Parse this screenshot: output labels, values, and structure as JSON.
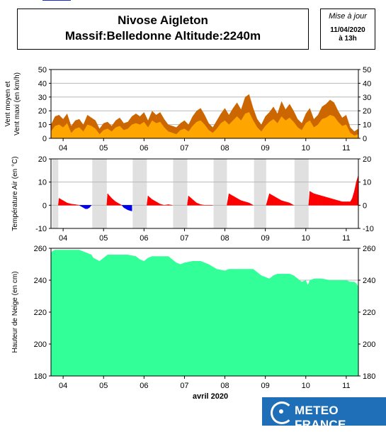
{
  "header": {
    "line1": "Nivose Aigleton",
    "line2": "Massif:Belledonne Altitude:2240m"
  },
  "update": {
    "label": "Mise à jour",
    "date": "11/04/2020",
    "time": "à 13h"
  },
  "brand": {
    "name": "METEO FRANCE"
  },
  "colors": {
    "wind_max": "#cc6600",
    "wind_mean": "#ffa500",
    "temp_pos": "#ff0000",
    "temp_neg": "#0000ee",
    "snow": "#33ff99",
    "night_band": "#e0e0e0"
  },
  "chart_data": [
    {
      "type": "area",
      "ylabel": "Vent moyen et Vent maxi (en km/h)",
      "ylim": [
        0,
        50
      ],
      "yticks": [
        0,
        10,
        20,
        30,
        40,
        50
      ],
      "xlim": [
        3.7,
        11.3
      ],
      "xticks": [
        {
          "x": 4.0,
          "label": "04"
        },
        {
          "x": 5.0,
          "label": "05"
        },
        {
          "x": 6.0,
          "label": "06"
        },
        {
          "x": 7.0,
          "label": "07"
        },
        {
          "x": 8.0,
          "label": "08"
        },
        {
          "x": 9.0,
          "label": "09"
        },
        {
          "x": 10.0,
          "label": "10"
        },
        {
          "x": 11.0,
          "label": "11"
        }
      ],
      "grid": true,
      "series": [
        {
          "role": "max",
          "x": [
            3.7,
            3.8,
            3.9,
            4.0,
            4.1,
            4.2,
            4.3,
            4.4,
            4.5,
            4.6,
            4.7,
            4.8,
            4.9,
            5.0,
            5.1,
            5.2,
            5.3,
            5.4,
            5.5,
            5.6,
            5.7,
            5.8,
            5.9,
            6.0,
            6.1,
            6.2,
            6.3,
            6.4,
            6.5,
            6.6,
            6.7,
            6.8,
            6.9,
            7.0,
            7.1,
            7.2,
            7.3,
            7.4,
            7.5,
            7.6,
            7.7,
            7.8,
            7.9,
            8.0,
            8.1,
            8.2,
            8.3,
            8.4,
            8.5,
            8.6,
            8.7,
            8.8,
            8.9,
            9.0,
            9.1,
            9.2,
            9.3,
            9.4,
            9.5,
            9.6,
            9.7,
            9.8,
            9.9,
            10.0,
            10.1,
            10.2,
            10.3,
            10.4,
            10.5,
            10.6,
            10.7,
            10.8,
            10.9,
            11.0,
            11.1,
            11.2,
            11.3
          ],
          "values": [
            10,
            16,
            17,
            14,
            18,
            9,
            13,
            14,
            10,
            17,
            15,
            13,
            7,
            11,
            12,
            9,
            13,
            15,
            11,
            12,
            16,
            18,
            16,
            19,
            13,
            20,
            17,
            19,
            14,
            10,
            9,
            8,
            11,
            13,
            10,
            16,
            20,
            22,
            17,
            11,
            8,
            13,
            18,
            22,
            17,
            22,
            26,
            21,
            30,
            32,
            22,
            14,
            10,
            16,
            19,
            23,
            18,
            27,
            21,
            25,
            20,
            14,
            11,
            18,
            22,
            14,
            17,
            23,
            25,
            28,
            26,
            20,
            15,
            17,
            8,
            5,
            7
          ]
        },
        {
          "role": "mean",
          "x": [
            3.7,
            3.8,
            3.9,
            4.0,
            4.1,
            4.2,
            4.3,
            4.4,
            4.5,
            4.6,
            4.7,
            4.8,
            4.9,
            5.0,
            5.1,
            5.2,
            5.3,
            5.4,
            5.5,
            5.6,
            5.7,
            5.8,
            5.9,
            6.0,
            6.1,
            6.2,
            6.3,
            6.4,
            6.5,
            6.6,
            6.7,
            6.8,
            6.9,
            7.0,
            7.1,
            7.2,
            7.3,
            7.4,
            7.5,
            7.6,
            7.7,
            7.8,
            7.9,
            8.0,
            8.1,
            8.2,
            8.3,
            8.4,
            8.5,
            8.6,
            8.7,
            8.8,
            8.9,
            9.0,
            9.1,
            9.2,
            9.3,
            9.4,
            9.5,
            9.6,
            9.7,
            9.8,
            9.9,
            10.0,
            10.1,
            10.2,
            10.3,
            10.4,
            10.5,
            10.6,
            10.7,
            10.8,
            10.9,
            11.0,
            11.1,
            11.2,
            11.3
          ],
          "values": [
            5,
            9,
            10,
            8,
            11,
            4,
            7,
            8,
            5,
            10,
            9,
            7,
            3,
            6,
            7,
            5,
            8,
            9,
            6,
            7,
            10,
            11,
            10,
            12,
            8,
            13,
            11,
            12,
            8,
            5,
            4,
            3,
            6,
            7,
            5,
            9,
            12,
            13,
            10,
            6,
            4,
            7,
            11,
            13,
            10,
            13,
            16,
            13,
            18,
            19,
            13,
            8,
            5,
            9,
            12,
            14,
            11,
            16,
            13,
            15,
            12,
            8,
            6,
            11,
            13,
            8,
            10,
            14,
            15,
            17,
            16,
            12,
            9,
            10,
            4,
            2,
            3
          ]
        }
      ]
    },
    {
      "type": "area",
      "ylabel": "Température Air (en °C)",
      "ylim": [
        -10,
        20
      ],
      "yticks": [
        -10,
        0,
        10,
        20
      ],
      "xlim": [
        3.7,
        11.3
      ],
      "xticks": [
        {
          "x": 4.0,
          "label": "04"
        },
        {
          "x": 5.0,
          "label": "05"
        },
        {
          "x": 6.0,
          "label": "06"
        },
        {
          "x": 7.0,
          "label": "07"
        },
        {
          "x": 8.0,
          "label": "08"
        },
        {
          "x": 9.0,
          "label": "09"
        },
        {
          "x": 10.0,
          "label": "10"
        },
        {
          "x": 11.0,
          "label": "11"
        }
      ],
      "grid": true,
      "night_bands": [
        [
          3.73,
          3.88
        ],
        [
          4.72,
          5.08
        ],
        [
          5.72,
          6.07
        ],
        [
          6.72,
          7.07
        ],
        [
          7.72,
          8.05
        ],
        [
          8.72,
          9.02
        ],
        [
          9.72,
          10.07
        ]
      ],
      "series": [
        {
          "x": [
            3.88,
            3.9,
            4.0,
            4.1,
            4.2,
            4.3,
            4.4,
            4.45,
            4.5,
            4.55,
            4.6,
            4.65,
            4.7,
            5.08,
            5.1,
            5.2,
            5.3,
            5.4,
            5.45,
            5.5,
            5.6,
            5.7,
            6.07,
            6.1,
            6.2,
            6.3,
            6.4,
            6.5,
            6.6,
            6.7,
            7.07,
            7.1,
            7.2,
            7.3,
            7.4,
            7.5,
            7.6,
            7.7,
            8.05,
            8.1,
            8.2,
            8.3,
            8.4,
            8.5,
            8.6,
            8.7,
            9.02,
            9.1,
            9.2,
            9.3,
            9.4,
            9.5,
            9.6,
            9.7,
            10.07,
            10.1,
            10.2,
            10.3,
            10.4,
            10.5,
            10.6,
            10.7,
            10.8,
            10.9,
            11.0,
            11.1,
            11.15,
            11.2,
            11.25,
            11.3
          ],
          "values": [
            0,
            3,
            2,
            1,
            0.5,
            0.3,
            0,
            -0.5,
            -1,
            -1.5,
            -1.5,
            -1,
            0,
            0,
            5,
            3,
            1.5,
            0.5,
            0,
            -1,
            -2,
            -2.5,
            0,
            4,
            2.5,
            1.5,
            0.5,
            0,
            0.3,
            0,
            0,
            4,
            2.5,
            1,
            0.3,
            0,
            0,
            0,
            0,
            5,
            4,
            3,
            2,
            1.5,
            1,
            0,
            0,
            5,
            4,
            3,
            2,
            1.5,
            1,
            0,
            0,
            6,
            5,
            4.5,
            4,
            3.5,
            3,
            2.5,
            2,
            1.5,
            1.5,
            1.5,
            3,
            6,
            10,
            13
          ]
        }
      ]
    },
    {
      "type": "area",
      "ylabel": "Hauteur de Neige (en cm)",
      "xlabel": "avril 2020",
      "ylim": [
        180,
        260
      ],
      "yticks": [
        180,
        200,
        220,
        240,
        260
      ],
      "xlim": [
        3.7,
        11.3
      ],
      "xticks": [
        {
          "x": 4.0,
          "label": "04"
        },
        {
          "x": 5.0,
          "label": "05"
        },
        {
          "x": 6.0,
          "label": "06"
        },
        {
          "x": 7.0,
          "label": "07"
        },
        {
          "x": 8.0,
          "label": "08"
        },
        {
          "x": 9.0,
          "label": "09"
        },
        {
          "x": 10.0,
          "label": "10"
        },
        {
          "x": 11.0,
          "label": "11"
        }
      ],
      "grid": true,
      "series": [
        {
          "x": [
            3.7,
            3.72,
            3.8,
            4.0,
            4.2,
            4.4,
            4.5,
            4.6,
            4.7,
            4.75,
            4.9,
            5.0,
            5.1,
            5.2,
            5.4,
            5.6,
            5.8,
            5.9,
            6.0,
            6.1,
            6.2,
            6.4,
            6.6,
            6.7,
            6.8,
            6.9,
            7.0,
            7.2,
            7.4,
            7.5,
            7.6,
            7.8,
            8.0,
            8.1,
            8.2,
            8.4,
            8.6,
            8.7,
            8.8,
            8.9,
            9.0,
            9.1,
            9.2,
            9.3,
            9.4,
            9.6,
            9.7,
            9.8,
            9.9,
            10.0,
            10.05,
            10.1,
            10.2,
            10.4,
            10.6,
            10.8,
            11.0,
            11.1,
            11.2,
            11.25,
            11.3
          ],
          "values": [
            257,
            258,
            259,
            259,
            259,
            259,
            258,
            257,
            256,
            254,
            252,
            254,
            256,
            256,
            256,
            256,
            255,
            253,
            252,
            254,
            255,
            255,
            255,
            253,
            251,
            250,
            251,
            252,
            252,
            251,
            250,
            247,
            246,
            247,
            247,
            247,
            247,
            247,
            245,
            243,
            242,
            241,
            243,
            244,
            244,
            244,
            243,
            241,
            239,
            240,
            237,
            240,
            241,
            241,
            240,
            240,
            240,
            239,
            239,
            238,
            236
          ]
        }
      ]
    }
  ]
}
